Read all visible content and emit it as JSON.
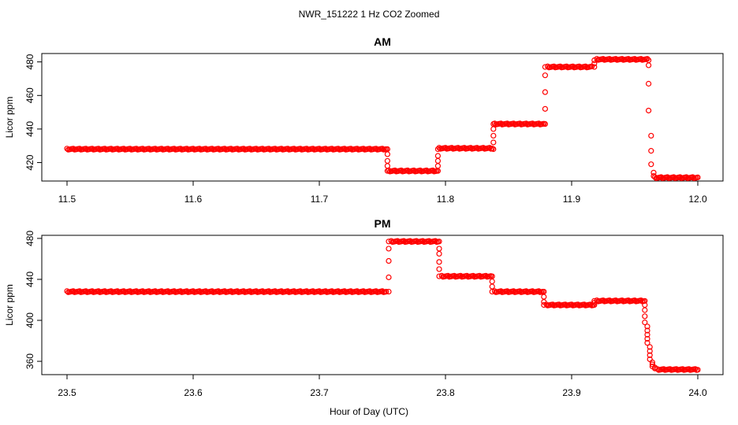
{
  "figure": {
    "title": "NWR_151222  1 Hz CO2 Zoomed",
    "xlabel": "Hour of Day (UTC)"
  },
  "chart_data": [
    {
      "type": "scatter",
      "title": "AM",
      "xlabel": "Hour of Day (UTC)",
      "ylabel": "Licor ppm",
      "xlim": [
        11.5,
        12.0
      ],
      "ylim": [
        409,
        485
      ],
      "xticks": [
        "11.5",
        "11.6",
        "11.7",
        "11.8",
        "11.9",
        "12.0"
      ],
      "xtick_values": [
        11.5,
        11.6,
        11.7,
        11.8,
        11.9,
        12.0
      ],
      "yticks": [
        "420",
        "440",
        "460",
        "480"
      ],
      "ytick_values": [
        420,
        440,
        460,
        480
      ],
      "marker_color": "#ff0000",
      "series": [
        {
          "name": "CO2",
          "plateaus": [
            {
              "x_start": 11.5,
              "x_end": 11.753,
              "y": 428
            },
            {
              "x_start": 11.755,
              "x_end": 11.793,
              "y": 415
            },
            {
              "x_start": 11.795,
              "x_end": 11.837,
              "y": 428.5
            },
            {
              "x_start": 11.839,
              "x_end": 11.878,
              "y": 443
            },
            {
              "x_start": 11.881,
              "x_end": 11.916,
              "y": 477
            },
            {
              "x_start": 11.92,
              "x_end": 11.96,
              "y": 481.5
            },
            {
              "x_start": 11.966,
              "x_end": 12.0,
              "y": 411
            }
          ],
          "transitions": [
            {
              "x": 11.754,
              "y": [
                428,
                425,
                421,
                418,
                415
              ]
            },
            {
              "x": 11.794,
              "y": [
                415,
                418,
                421,
                424,
                428
              ]
            },
            {
              "x": 11.838,
              "y": [
                428,
                432,
                436,
                440,
                443
              ]
            },
            {
              "x": 11.879,
              "y": [
                443,
                452,
                462,
                472,
                477
              ]
            },
            {
              "x": 11.918,
              "y": [
                477,
                479,
                481
              ]
            },
            {
              "x": 11.961,
              "y": [
                481,
                478,
                467,
                451
              ]
            },
            {
              "x": 11.963,
              "y": [
                436,
                427,
                419
              ]
            },
            {
              "x": 11.965,
              "y": [
                414,
                412
              ]
            }
          ]
        }
      ]
    },
    {
      "type": "scatter",
      "title": "PM",
      "xlabel": "Hour of Day (UTC)",
      "ylabel": "Licor ppm",
      "xlim": [
        23.5,
        24.0
      ],
      "ylim": [
        347,
        483
      ],
      "xticks": [
        "23.5",
        "23.6",
        "23.7",
        "23.8",
        "23.9",
        "24.0"
      ],
      "xtick_values": [
        23.5,
        23.6,
        23.7,
        23.8,
        23.9,
        24.0
      ],
      "yticks": [
        "360",
        "400",
        "440",
        "480"
      ],
      "ytick_values": [
        360,
        400,
        440,
        480
      ],
      "marker_color": "#ff0000",
      "series": [
        {
          "name": "CO2",
          "plateaus": [
            {
              "x_start": 23.5,
              "x_end": 23.753,
              "y": 428
            },
            {
              "x_start": 23.757,
              "x_end": 23.794,
              "y": 477
            },
            {
              "x_start": 23.797,
              "x_end": 23.836,
              "y": 443
            },
            {
              "x_start": 23.839,
              "x_end": 23.877,
              "y": 428
            },
            {
              "x_start": 23.88,
              "x_end": 23.917,
              "y": 415
            },
            {
              "x_start": 23.92,
              "x_end": 23.957,
              "y": 419
            },
            {
              "x_start": 23.968,
              "x_end": 24.0,
              "y": 352
            }
          ],
          "transitions": [
            {
              "x": 23.755,
              "y": [
                428,
                442,
                458,
                470,
                477
              ]
            },
            {
              "x": 23.795,
              "y": [
                477,
                470,
                465,
                457,
                450,
                443
              ]
            },
            {
              "x": 23.837,
              "y": [
                443,
                438,
                433,
                428
              ]
            },
            {
              "x": 23.878,
              "y": [
                428,
                423,
                418,
                415
              ]
            },
            {
              "x": 23.918,
              "y": [
                415,
                417,
                419
              ]
            },
            {
              "x": 23.958,
              "y": [
                419,
                415,
                410,
                404,
                398
              ]
            },
            {
              "x": 23.96,
              "y": [
                394,
                390,
                386,
                382,
                378
              ]
            },
            {
              "x": 23.962,
              "y": [
                374,
                370,
                366,
                362
              ]
            },
            {
              "x": 23.964,
              "y": [
                359,
                357,
                355
              ]
            },
            {
              "x": 23.966,
              "y": [
                354,
                353
              ]
            }
          ]
        }
      ]
    }
  ]
}
